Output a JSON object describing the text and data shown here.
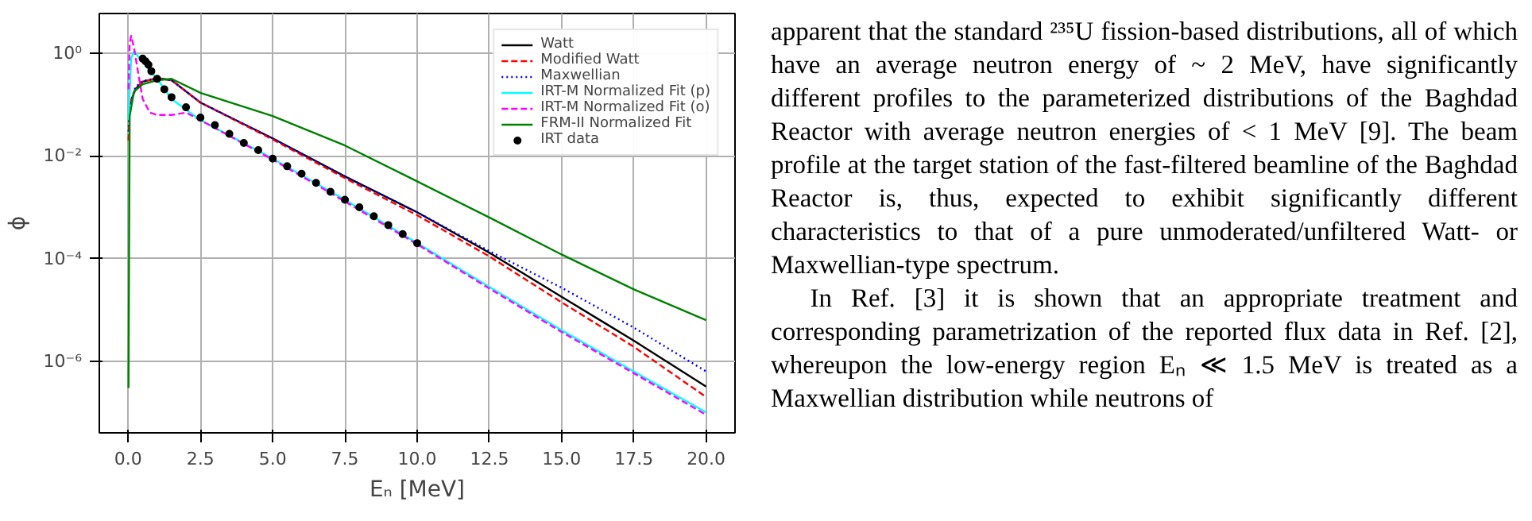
{
  "chart_data": {
    "type": "line",
    "xlabel": "Eₙ [MeV]",
    "ylabel": "ϕ",
    "log": "y",
    "xlim": [
      -1,
      21
    ],
    "xticks": [
      {
        "value": 0,
        "label": "0.0"
      },
      {
        "value": 2.5,
        "label": "2.5"
      },
      {
        "value": 5,
        "label": "5.0"
      },
      {
        "value": 7.5,
        "label": "7.5"
      },
      {
        "value": 10,
        "label": "10.0"
      },
      {
        "value": 12.5,
        "label": "12.5"
      },
      {
        "value": 15,
        "label": "15.0"
      },
      {
        "value": 17.5,
        "label": "17.5"
      },
      {
        "value": 20,
        "label": "20.0"
      }
    ],
    "ylim": [
      4e-08,
      6
    ],
    "yticks": [
      {
        "value": 1e-06,
        "label": "10⁻⁶"
      },
      {
        "value": 0.0001,
        "label": "10⁻⁴"
      },
      {
        "value": 0.01,
        "label": "10⁻²"
      },
      {
        "value": 1,
        "label": "10⁰"
      }
    ],
    "grid": true,
    "legend": "top right",
    "series": [
      {
        "name": "Watt",
        "color": "#000000",
        "line_style": "solid",
        "x": [
          0.05,
          0.25,
          0.5,
          1,
          1.5,
          2.5,
          5,
          7.5,
          10,
          12.5,
          15,
          17.5,
          20
        ],
        "values": [
          0.1,
          0.2,
          0.28,
          0.33,
          0.3,
          0.11,
          0.022,
          0.004,
          0.0008,
          0.00013,
          1.8e-05,
          2.5e-06,
          3.2e-07
        ]
      },
      {
        "name": "Modified Watt",
        "color": "#ff0000",
        "line_style": "dashed",
        "x": [
          0.01,
          0.05,
          0.25,
          0.5,
          1,
          1.5,
          2.5,
          5,
          7.5,
          10,
          12.5,
          15,
          17.5,
          20
        ],
        "values": [
          0.02,
          0.1,
          0.2,
          0.28,
          0.33,
          0.3,
          0.11,
          0.021,
          0.0037,
          0.0007,
          0.00011,
          1.4e-05,
          1.9e-06,
          2e-07
        ]
      },
      {
        "name": "Maxwellian",
        "color": "#0000ff",
        "line_style": "dotted",
        "x": [
          0.01,
          0.05,
          0.25,
          0.5,
          1,
          1.5,
          2.5,
          5,
          7.5,
          10,
          12.5,
          15,
          17.5,
          20
        ],
        "values": [
          0.03,
          0.1,
          0.22,
          0.29,
          0.33,
          0.3,
          0.11,
          0.022,
          0.004,
          0.0008,
          0.00014,
          2.7e-05,
          4.5e-06,
          6.3e-07
        ]
      },
      {
        "name": "IRT-M Normalized Fit (p)",
        "color": "#00ffff",
        "line_style": "solid",
        "x": [
          0.01,
          0.1,
          0.2,
          0.4,
          0.7,
          1,
          1.5,
          2,
          2.5,
          5,
          7.5,
          10,
          12.5,
          15,
          17.5,
          20
        ],
        "values": [
          0.05,
          0.8,
          1.1,
          0.8,
          0.5,
          0.32,
          0.13,
          0.08,
          0.05,
          0.0089,
          0.0014,
          0.0002,
          2.8e-05,
          4e-06,
          6.3e-07,
          1e-07
        ]
      },
      {
        "name": "IRT-M Normalized Fit (o)",
        "color": "#ff00ff",
        "line_style": "dashed",
        "x": [
          0.01,
          0.05,
          0.1,
          0.2,
          0.35,
          0.5,
          0.75,
          1,
          1.5,
          2,
          2.5,
          5,
          7.5,
          10,
          12.5,
          15,
          17.5,
          20
        ],
        "values": [
          0.2,
          1.6,
          2.2,
          1.3,
          0.4,
          0.13,
          0.07,
          0.063,
          0.063,
          0.07,
          0.05,
          0.0085,
          0.0013,
          0.00019,
          2.6e-05,
          3.7e-06,
          5.8e-07,
          9e-08
        ]
      },
      {
        "name": "FRM-II Normalized Fit",
        "color": "#008000",
        "line_style": "solid",
        "x": [
          0.01,
          0.05,
          0.2,
          0.5,
          1,
          1.5,
          2.5,
          5,
          7.5,
          10,
          12.5,
          15,
          17.5,
          20
        ],
        "values": [
          3e-07,
          0.06,
          0.18,
          0.25,
          0.3,
          0.32,
          0.17,
          0.06,
          0.016,
          0.0032,
          0.00063,
          0.00012,
          2.5e-05,
          6.3e-06
        ]
      },
      {
        "name": "IRT data",
        "type": "scatter",
        "marker": "circle",
        "color": "#000000",
        "x": [
          0.5,
          0.6,
          0.7,
          0.8,
          1,
          1.25,
          1.5,
          2,
          2.5,
          3,
          3.5,
          4,
          4.5,
          5,
          5.5,
          6,
          6.5,
          7,
          7.5,
          8,
          8.5,
          9,
          9.5,
          10
        ],
        "values": [
          0.79,
          0.7,
          0.6,
          0.45,
          0.32,
          0.2,
          0.14,
          0.089,
          0.056,
          0.04,
          0.027,
          0.018,
          0.013,
          0.0089,
          0.0063,
          0.0045,
          0.003,
          0.002,
          0.0014,
          0.001,
          0.00067,
          0.00045,
          0.0003,
          0.0002
        ]
      }
    ],
    "annotations": [
      "apparent that the standard ²³⁵U fission-based distributions, all of which have an average neutron energy of ~ 2 MeV, have significantly different profiles to the parameterized distributions of the Baghdad Reactor with average neutron energies of < 1 MeV [9]. The beam profile at the target station of the fast-filtered beamline of the Baghdad Reactor is, thus, expected to exhibit significantly different characteristics to that of a pure unmoderated/unfiltered Watt- or Maxwellian-type spectrum.",
      "In Ref. [3] it is shown that an appropriate treatment and corresponding parametrization of the reported flux data in Ref. [2], whereupon the low-energy region Eₙ ≪ 1.5 MeV is treated as a Maxwellian distribution while neutrons of"
    ]
  }
}
